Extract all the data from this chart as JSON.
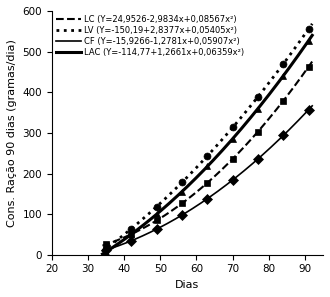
{
  "title": "",
  "xlabel": "Dias",
  "ylabel": "Cons. Ração 90 dias (gramas/dia)",
  "xlim": [
    20,
    95
  ],
  "ylim": [
    0,
    600
  ],
  "xticks": [
    20,
    30,
    40,
    50,
    60,
    70,
    80,
    90
  ],
  "yticks": [
    0,
    100,
    200,
    300,
    400,
    500,
    600
  ],
  "series": [
    {
      "label": "LC (Y=24,9526-2,9834x+0,08567x²)",
      "a": 24.9526,
      "b": -2.9834,
      "c": 0.08567,
      "linestyle": "--",
      "linewidth": 1.5,
      "color": "black",
      "marker": "s",
      "marker_x": [
        35,
        42,
        49,
        56,
        63,
        70,
        77,
        84,
        91
      ]
    },
    {
      "label": "LV (Y=-150,19+2,8377x+0,05405x²)",
      "a": -150.19,
      "b": 2.8377,
      "c": 0.05405,
      "linestyle": ":",
      "linewidth": 2.0,
      "color": "black",
      "marker": "o",
      "marker_x": [
        35,
        42,
        49,
        56,
        63,
        70,
        77,
        84,
        91
      ]
    },
    {
      "label": "CF (Y=-15,9266-1,2781x+0,05907x²)",
      "a": -15.9266,
      "b": -1.2781,
      "c": 0.05907,
      "linestyle": "-",
      "linewidth": 1.2,
      "color": "black",
      "marker": "D",
      "marker_x": [
        35,
        42,
        49,
        56,
        63,
        70,
        77,
        84,
        91
      ]
    },
    {
      "label": "LAC (Y=-114,77+1,2661x+0,06359x²)",
      "a": -114.77,
      "b": 1.2661,
      "c": 0.06359,
      "linestyle": "-",
      "linewidth": 2.2,
      "color": "black",
      "marker": "^",
      "marker_x": [
        35,
        42,
        49,
        56,
        63,
        70,
        77,
        84,
        91
      ]
    }
  ],
  "background_color": "white",
  "legend_fontsize": 6.0,
  "axis_fontsize": 8,
  "tick_fontsize": 7.5,
  "marker_size": 5
}
